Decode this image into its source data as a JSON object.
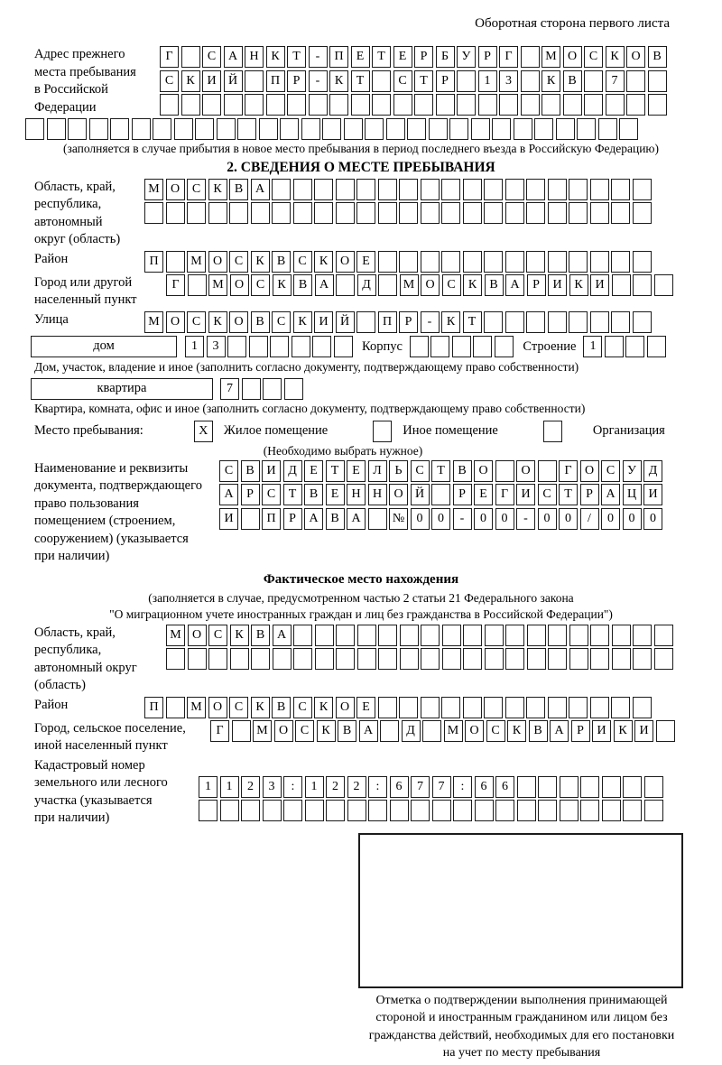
{
  "page_header": "Оборотная сторона первого листа",
  "prev_address": {
    "label_lines": [
      "Адрес прежнего",
      "места пребывания",
      "в Российской",
      "Федерации"
    ],
    "rows": [
      {
        "text": "Г САНКТ-ПЕТЕРБУРГ МОСКОВ",
        "length": 24
      },
      {
        "text": "СКИЙ ПР-КТ СТР 13 КВ 7",
        "length": 24
      },
      {
        "text": "",
        "length": 24
      }
    ],
    "overflow_row": {
      "text": "",
      "length": 29
    },
    "note": "(заполняется в случае прибытия в новое место пребывания в период последнего въезда в Российскую Федерацию)"
  },
  "section2": {
    "title": "2. СВЕДЕНИЯ О МЕСТЕ ПРЕБЫВАНИЯ",
    "region": {
      "label_lines": [
        "Область, край,",
        "республика,",
        "автономный",
        "округ (область)"
      ],
      "rows": [
        {
          "text": "МОСКВА",
          "length": 24
        },
        {
          "text": "",
          "length": 24
        }
      ]
    },
    "district": {
      "label": "Район",
      "row": {
        "text": "П МОСКВСКОЕ",
        "length": 24
      }
    },
    "city": {
      "label_lines": [
        "Город или другой",
        "населенный пункт"
      ],
      "row": {
        "text": "Г МОСКВА Д МОСКВАРИКИ",
        "length": 24
      }
    },
    "street": {
      "label": "Улица",
      "row": {
        "text": "МОСКОВСКИЙ ПР-КТ",
        "length": 24
      }
    },
    "house": {
      "label": "дом",
      "row": {
        "text": "13",
        "length": 8
      },
      "korpus_label": "Корпус",
      "korpus_row": {
        "text": "",
        "length": 5
      },
      "stroenie_label": "Строение",
      "stroenie_row": {
        "text": "1",
        "length": 4
      },
      "note": "Дом, участок, владение и иное (заполнить согласно документу, подтверждающему право собственности)"
    },
    "apartment": {
      "label": "квартира",
      "row": {
        "text": "7",
        "length": 4
      },
      "note": "Квартира, комната, офис и иное (заполнить согласно документу, подтверждающему право собственности)"
    },
    "stay": {
      "label": "Место пребывания:",
      "options": [
        {
          "label": "Жилое помещение",
          "cell": {
            "text": "X",
            "length": 1
          }
        },
        {
          "label": "Иное помещение",
          "cell": {
            "text": "",
            "length": 1
          }
        },
        {
          "label": "Организация",
          "cell": {
            "text": "",
            "length": 1
          }
        }
      ],
      "note": "(Необходимо выбрать нужное)"
    },
    "document": {
      "label_lines": [
        "Наименование и реквизиты",
        "документа, подтверждающего",
        "право пользования",
        "помещением (строением,",
        "сооружением) (указывается",
        "при наличии)"
      ],
      "rows": [
        {
          "text": "СВИДЕТЕЛЬСТВО О ГОСУД",
          "length": 21
        },
        {
          "text": "АРСТВЕННОЙ РЕГИСТРАЦИ",
          "length": 21
        },
        {
          "text": "И ПРАВА №00-00-00/000",
          "length": 21
        }
      ]
    }
  },
  "fact": {
    "title": "Фактическое место нахождения",
    "note_lines": [
      "(заполняется в случае, предусмотренном частью 2 статьи 21 Федерального закона",
      "\"О миграционном учете иностранных граждан и лиц без гражданства в Российской Федерации\")"
    ],
    "region": {
      "label_lines": [
        "Область, край,",
        "республика,",
        "автономный округ",
        "(область)"
      ],
      "rows": [
        {
          "text": "МОСКВА",
          "length": 24
        },
        {
          "text": "",
          "length": 24
        }
      ]
    },
    "district": {
      "label": "Район",
      "row": {
        "text": "П МОСКВСКОЕ",
        "length": 24
      }
    },
    "city": {
      "label_lines": [
        "Город, сельское поселение,",
        "иной населенный пункт"
      ],
      "row": {
        "text": "Г МОСКВА Д МОСКВАРИКИ",
        "length": 22
      }
    },
    "cadastral": {
      "label_lines": [
        "Кадастровый номер",
        "земельного или лесного",
        "участка (указывается",
        "при наличии)"
      ],
      "rows": [
        {
          "text": "1123:122:677:66",
          "length": 22
        },
        {
          "text": "",
          "length": 22
        }
      ]
    }
  },
  "confirmation": {
    "lines": [
      "Отметка о подтверждении выполнения принимающей",
      "стороной и иностранным гражданином или лицом без",
      "гражданства действий, необходимых для его постановки",
      "на учет по месту пребывания"
    ]
  }
}
